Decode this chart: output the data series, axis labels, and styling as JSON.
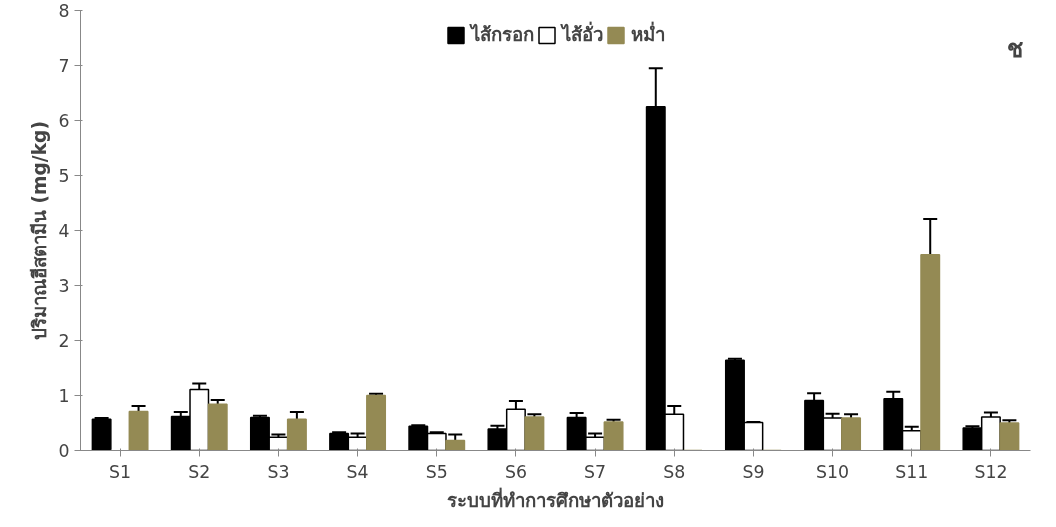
{
  "chart_data": {
    "type": "bar",
    "ylabel": "ปริมาณฮีสตามีน (mg/kg)",
    "xlabel": "ระบบที่ทำการศึกษาตัวอย่าง",
    "categories": [
      "S1",
      "S2",
      "S3",
      "S4",
      "S5",
      "S6",
      "S7",
      "S8",
      "S9",
      "S10",
      "S11",
      "S12"
    ],
    "series": [
      {
        "name": "ไส้กรอก",
        "color": "#000000",
        "values": [
          0.57,
          0.62,
          0.6,
          0.31,
          0.44,
          0.39,
          0.6,
          6.25,
          1.64,
          0.91,
          0.94,
          0.41
        ],
        "errors": [
          0.02,
          0.08,
          0.03,
          0.02,
          0.02,
          0.06,
          0.08,
          0.7,
          0.03,
          0.13,
          0.13,
          0.03
        ]
      },
      {
        "name": "ไส้อั่ว",
        "color": "#ffffff",
        "values": [
          0,
          1.11,
          0.24,
          0.24,
          0.31,
          0.75,
          0.24,
          0.66,
          0.51,
          0.59,
          0.36,
          0.61
        ],
        "errors": [
          null,
          0.11,
          0.05,
          0.07,
          0.02,
          0.15,
          0.07,
          0.15,
          0.01,
          0.08,
          0.07,
          0.08
        ]
      },
      {
        "name": "หม่ำ",
        "color": "#948a54",
        "values": [
          0.71,
          0.84,
          0.57,
          1.0,
          0.18,
          0.61,
          0.52,
          0,
          0,
          0.59,
          3.56,
          0.5
        ],
        "errors": [
          0.1,
          0.08,
          0.13,
          0.03,
          0.11,
          0.05,
          0.04,
          null,
          null,
          0.07,
          0.65,
          0.05
        ]
      }
    ],
    "ylim": [
      0,
      8
    ],
    "yticks": [
      0,
      1,
      2,
      3,
      4,
      5,
      6,
      7,
      8
    ],
    "grid": false,
    "legend": "top",
    "annotations": [
      "ช"
    ]
  }
}
